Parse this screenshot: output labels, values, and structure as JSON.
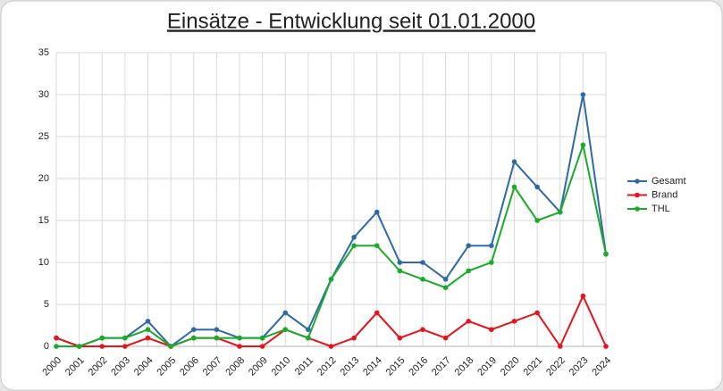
{
  "chart_data": {
    "type": "line",
    "title": "Einsätze - Entwicklung seit 01.01.2000",
    "categories": [
      "2000",
      "2001",
      "2002",
      "2003",
      "2004",
      "2005",
      "2006",
      "2007",
      "2008",
      "2009",
      "2010",
      "2011",
      "2012",
      "2013",
      "2014",
      "2015",
      "2016",
      "2017",
      "2018",
      "2019",
      "2020",
      "2021",
      "2022",
      "2023",
      "2024"
    ],
    "series": [
      {
        "name": "Gesamt",
        "color": "#2f6aa7",
        "values": [
          1,
          0,
          1,
          1,
          3,
          0,
          2,
          2,
          1,
          1,
          4,
          2,
          8,
          13,
          16,
          10,
          10,
          8,
          12,
          12,
          22,
          19,
          16,
          30,
          11
        ]
      },
      {
        "name": "Brand",
        "color": "#e8141b",
        "values": [
          1,
          0,
          0,
          0,
          1,
          0,
          1,
          1,
          0,
          0,
          2,
          1,
          0,
          1,
          4,
          1,
          2,
          1,
          3,
          2,
          3,
          4,
          0,
          6,
          0
        ]
      },
      {
        "name": "THL",
        "color": "#1aab2a",
        "values": [
          0,
          0,
          1,
          1,
          2,
          0,
          1,
          1,
          1,
          1,
          2,
          1,
          8,
          12,
          12,
          9,
          8,
          7,
          9,
          10,
          19,
          15,
          16,
          24,
          11
        ]
      }
    ],
    "ylim": [
      0,
      35
    ],
    "yticks": [
      0,
      5,
      10,
      15,
      20,
      25,
      30,
      35
    ],
    "grid": true,
    "legend": "right"
  }
}
